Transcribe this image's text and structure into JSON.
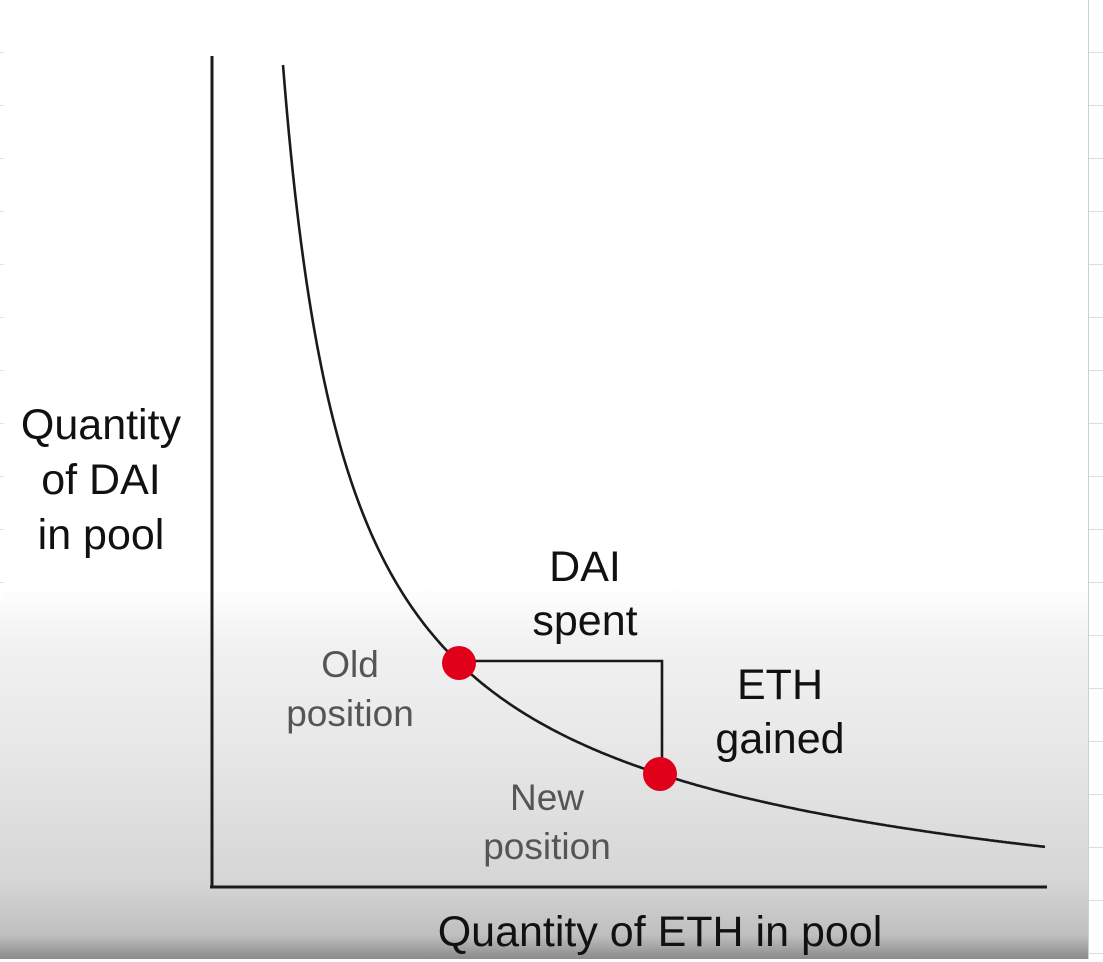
{
  "diagram": {
    "y_axis_label": [
      "Quantity",
      "of DAI",
      "in pool"
    ],
    "x_axis_label": "Quantity of ETH in pool",
    "old_position_label": [
      "Old",
      "position"
    ],
    "new_position_label": [
      "New",
      "position"
    ],
    "dai_spent_label": [
      "DAI",
      "spent"
    ],
    "eth_gained_label": [
      "ETH",
      "gained"
    ],
    "colors": {
      "curve": "#1a1a1a",
      "axes": "#1a1a1a",
      "point": "#e0001a",
      "label_text": "#111111",
      "position_text": "#555555"
    }
  }
}
